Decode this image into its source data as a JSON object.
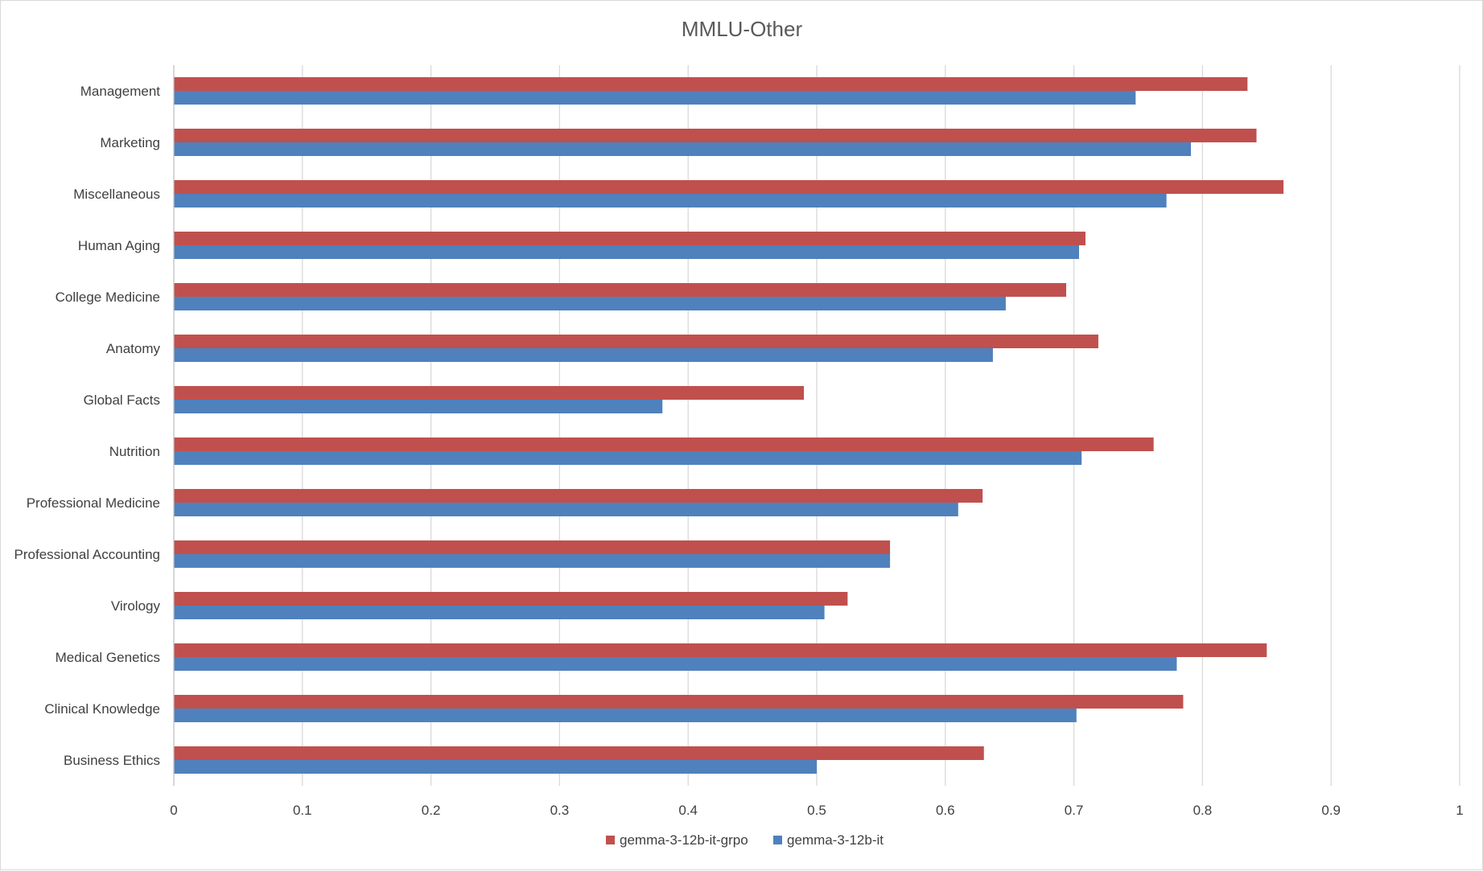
{
  "chart_data": {
    "type": "bar",
    "orientation": "horizontal",
    "title": "MMLU-Other",
    "xlabel": "",
    "ylabel": "",
    "xlim": [
      0,
      1
    ],
    "x_ticks": [
      "0",
      "0.1",
      "0.2",
      "0.3",
      "0.4",
      "0.5",
      "0.6",
      "0.7",
      "0.8",
      "0.9",
      "1"
    ],
    "grid": "vertical",
    "legend_position": "bottom",
    "categories": [
      "Management",
      "Marketing",
      "Miscellaneous",
      "Human Aging",
      "College Medicine",
      "Anatomy",
      "Global Facts",
      "Nutrition",
      "Professional Medicine",
      "Professional Accounting",
      "Virology",
      "Medical Genetics",
      "Clinical Knowledge",
      "Business Ethics"
    ],
    "series": [
      {
        "name": "gemma-3-12b-it-grpo",
        "color": "#c0504d",
        "values": [
          0.835,
          0.842,
          0.863,
          0.709,
          0.694,
          0.719,
          0.49,
          0.762,
          0.629,
          0.557,
          0.524,
          0.85,
          0.785,
          0.63
        ]
      },
      {
        "name": "gemma-3-12b-it",
        "color": "#4f81bd",
        "values": [
          0.748,
          0.791,
          0.772,
          0.704,
          0.647,
          0.637,
          0.38,
          0.706,
          0.61,
          0.557,
          0.506,
          0.78,
          0.702,
          0.5
        ]
      }
    ]
  }
}
